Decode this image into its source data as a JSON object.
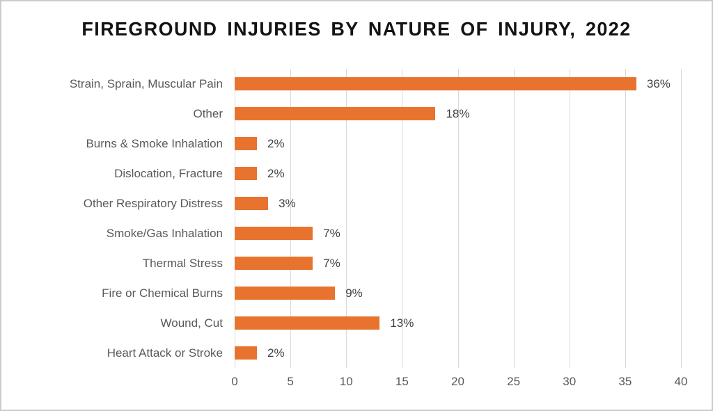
{
  "chart_data": {
    "type": "bar",
    "orientation": "horizontal",
    "title": "FIREGROUND INJURIES BY NATURE OF INJURY, 2022",
    "categories": [
      "Strain, Sprain, Muscular Pain",
      "Other",
      "Burns & Smoke Inhalation",
      "Dislocation, Fracture",
      "Other Respiratory Distress",
      "Smoke/Gas Inhalation",
      "Thermal Stress",
      "Fire or Chemical Burns",
      "Wound, Cut",
      "Heart Attack or Stroke"
    ],
    "values": [
      36,
      18,
      2,
      2,
      3,
      7,
      7,
      9,
      13,
      2
    ],
    "value_labels": [
      "36%",
      "18%",
      "2%",
      "2%",
      "3%",
      "7%",
      "7%",
      "9%",
      "13%",
      "2%"
    ],
    "value_suffix": "%",
    "xlabel": "",
    "ylabel": "",
    "xlim": [
      0,
      40
    ],
    "xticks": [
      0,
      5,
      10,
      15,
      20,
      25,
      30,
      35,
      40
    ],
    "grid": "vertical-gridlines-on",
    "legend": "none",
    "colors": {
      "bar": "#e7732f",
      "gridline": "#d9d9d9",
      "category_label": "#595959",
      "value_label": "#404040",
      "tick_label": "#595959",
      "title": "#131313",
      "frame_border": "#cbcbcb",
      "background": "#ffffff"
    }
  }
}
